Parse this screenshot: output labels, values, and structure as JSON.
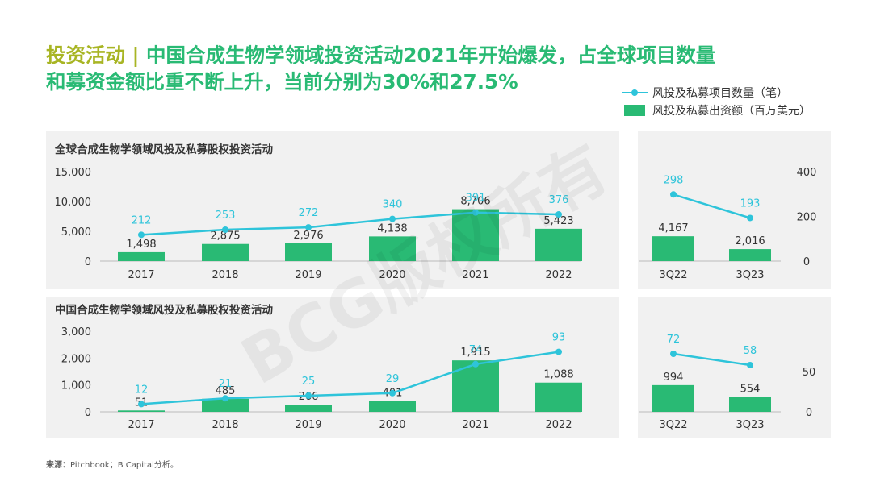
{
  "title": {
    "label": "投资活动 | ",
    "line1": "中国合成生物学领域投资活动2021年开始爆发，占全球项目数量",
    "line2": "和募资金额比重不断上升，当前分别为30%和27.5%"
  },
  "legend": {
    "line": "风投及私募项目数量（笔）",
    "bar": "风投及私募出资额（百万美元）"
  },
  "watermark": "BCG版权所有",
  "source": {
    "label": "来源：",
    "text": "Pitchbook；B Capital分析。"
  },
  "colors": {
    "bar": "#29BA74",
    "line": "#2EC4DA",
    "title": "#29BA74",
    "label": "#A8B524"
  },
  "chart_data": [
    {
      "type": "bar+line",
      "title": "全球合成生物学领域风投及私募股权投资活动",
      "categories": [
        "2017",
        "2018",
        "2019",
        "2020",
        "2021",
        "2022"
      ],
      "bar_series": {
        "name": "风投及私募出资额（百万美元）",
        "values": [
          1498,
          2875,
          2976,
          4138,
          8706,
          5423
        ],
        "labels": [
          "1,498",
          "2,875",
          "2,976",
          "4,138",
          "8,706",
          "5,423"
        ]
      },
      "line_series": {
        "name": "风投及私募项目数量（笔）",
        "values": [
          212,
          253,
          272,
          340,
          391,
          376
        ],
        "labels": [
          "212",
          "253",
          "272",
          "340",
          "391",
          "376"
        ]
      },
      "y_ticks": [
        "15,000",
        "10,000",
        "5,000",
        "0"
      ],
      "ylim": [
        0,
        15000
      ],
      "line_ylim": [
        0,
        720
      ],
      "right_categories": [
        "3Q22",
        "3Q23"
      ],
      "right_bar_values": [
        4167,
        2016
      ],
      "right_bar_labels": [
        "4,167",
        "2,016"
      ],
      "right_line_values": [
        298,
        193
      ],
      "right_line_labels": [
        "298",
        "193"
      ],
      "right_ylim": [
        0,
        15000
      ],
      "right_line_ylim": [
        0,
        400
      ],
      "right_y_ticks": [
        "400",
        "200",
        "0"
      ]
    },
    {
      "type": "bar+line",
      "title": "中国合成生物学领域风投及私募股权投资活动",
      "categories": [
        "2017",
        "2018",
        "2019",
        "2020",
        "2021",
        "2022"
      ],
      "bar_series": {
        "name": "风投及私募出资额（百万美元）",
        "values": [
          51,
          485,
          266,
          401,
          1915,
          1088
        ],
        "labels": [
          "51",
          "485",
          "266",
          "401",
          "1,915",
          "1,088"
        ]
      },
      "line_series": {
        "name": "风投及私募项目数量（笔）",
        "values": [
          12,
          21,
          25,
          29,
          74,
          93
        ],
        "labels": [
          "12",
          "21",
          "25",
          "29",
          "74",
          "93"
        ]
      },
      "y_ticks": [
        "3,000",
        "2,000",
        "1,000",
        "0"
      ],
      "ylim": [
        0,
        3000
      ],
      "line_ylim": [
        0,
        125
      ],
      "right_categories": [
        "3Q22",
        "3Q23"
      ],
      "right_bar_values": [
        994,
        554
      ],
      "right_bar_labels": [
        "994",
        "554"
      ],
      "right_line_values": [
        72,
        58
      ],
      "right_line_labels": [
        "72",
        "58"
      ],
      "right_ylim": [
        0,
        3000
      ],
      "right_line_ylim": [
        0,
        100
      ],
      "right_y_ticks": [
        "50",
        "0"
      ]
    }
  ]
}
